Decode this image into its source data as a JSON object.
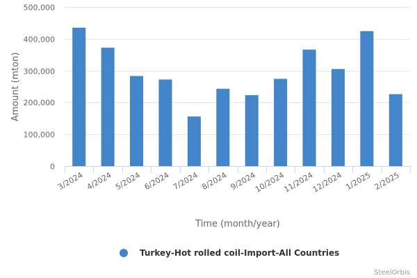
{
  "chart_data": {
    "type": "bar",
    "categories": [
      "3/2024",
      "4/2024",
      "5/2024",
      "6/2024",
      "7/2024",
      "8/2024",
      "9/2024",
      "10/2024",
      "11/2024",
      "12/2024",
      "1/2025",
      "2/2025"
    ],
    "series": [
      {
        "name": "Turkey-Hot rolled coil-Import-All Countries",
        "values": [
          435000,
          372000,
          283000,
          272000,
          156000,
          243000,
          223000,
          274000,
          366000,
          305000,
          424000,
          226000
        ],
        "color": "#4285c9"
      }
    ],
    "xlabel": "Time (month/year)",
    "ylabel": "Amount (mton)",
    "ylim": [
      0,
      500000
    ],
    "yticks": [
      0,
      100000,
      200000,
      300000,
      400000,
      500000
    ],
    "ytick_labels": [
      "0",
      "100,000",
      "200,000",
      "300,000",
      "400,000",
      "500,000"
    ],
    "grid": true,
    "legend_position": "bottom-center",
    "credit": "SteelOrbis"
  }
}
